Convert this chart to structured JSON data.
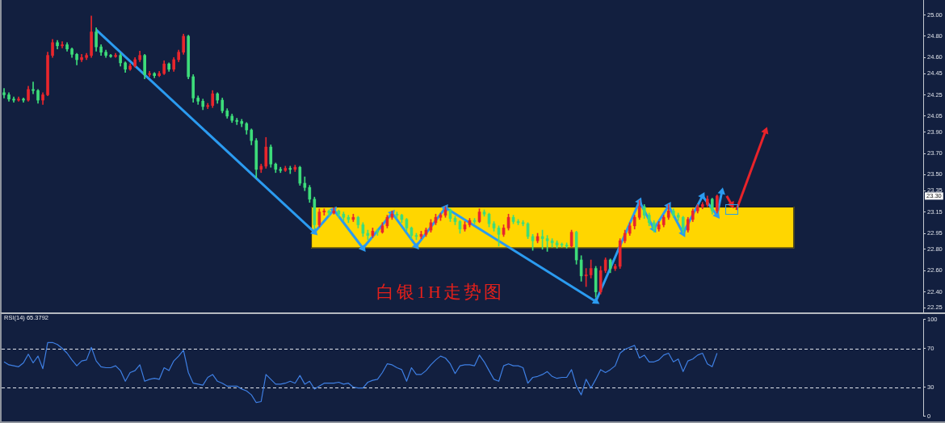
{
  "chart_data": [
    {
      "type": "candlestick",
      "title": "白银1H走势图",
      "categories": [
        null,
        null,
        null,
        null,
        null,
        null,
        null,
        null,
        null,
        null,
        null,
        null,
        null,
        null,
        null,
        null,
        null,
        null,
        null,
        null,
        null,
        null,
        null,
        null,
        null,
        null,
        null,
        null,
        null,
        null,
        null,
        null,
        null,
        null,
        null,
        null,
        null,
        null,
        null,
        null,
        null,
        null,
        null,
        null,
        null,
        null,
        null,
        null,
        null,
        null,
        null,
        null,
        null,
        null,
        null,
        null,
        null,
        null,
        null,
        null,
        null,
        null,
        null,
        null,
        null,
        null,
        null,
        null,
        null,
        null,
        null,
        null,
        null,
        null,
        null,
        null,
        null,
        null,
        null,
        null,
        null,
        null,
        null,
        null,
        null,
        null,
        null,
        null,
        null,
        null,
        null,
        null,
        null,
        null,
        null,
        null,
        null,
        null,
        null,
        null,
        null,
        null,
        null,
        null,
        null,
        null,
        null,
        null,
        null,
        null,
        null,
        null,
        null,
        null,
        null,
        null,
        null,
        null,
        null,
        null,
        null,
        null,
        null,
        null,
        null,
        null,
        null,
        null,
        null,
        null,
        null,
        null,
        null,
        null,
        null,
        null,
        null,
        null,
        null,
        null,
        null,
        null,
        null,
        null,
        null,
        null,
        null,
        null,
        null,
        null,
        null,
        null,
        null,
        null,
        null,
        null,
        null,
        null,
        null,
        null,
        null,
        null,
        null,
        null,
        null,
        null,
        null,
        null,
        null,
        null,
        null,
        null,
        null,
        null,
        null,
        null,
        null,
        null,
        null,
        null,
        null,
        null,
        null,
        null,
        null,
        null,
        null,
        null,
        null,
        null
      ],
      "ohlc": [
        [
          24.27,
          24.31,
          24.22,
          24.25
        ],
        [
          24.25,
          24.27,
          24.19,
          24.21
        ],
        [
          24.21,
          24.23,
          24.18,
          24.2
        ],
        [
          24.2,
          24.23,
          24.19,
          24.21
        ],
        [
          24.21,
          24.22,
          24.18,
          24.2
        ],
        [
          24.2,
          24.33,
          24.19,
          24.3
        ],
        [
          24.3,
          24.37,
          24.26,
          24.29
        ],
        [
          24.29,
          24.3,
          24.17,
          24.2
        ],
        [
          24.2,
          24.27,
          24.16,
          24.25
        ],
        [
          24.25,
          24.65,
          24.24,
          24.62
        ],
        [
          24.62,
          24.77,
          24.6,
          24.74
        ],
        [
          24.74,
          24.76,
          24.68,
          24.71
        ],
        [
          24.71,
          24.75,
          24.69,
          24.72
        ],
        [
          24.72,
          24.74,
          24.66,
          24.68
        ],
        [
          24.68,
          24.69,
          24.6,
          24.63
        ],
        [
          24.63,
          24.64,
          24.53,
          24.58
        ],
        [
          24.58,
          24.63,
          24.56,
          24.6
        ],
        [
          24.6,
          24.64,
          24.58,
          24.62
        ],
        [
          24.62,
          24.99,
          24.6,
          24.84
        ],
        [
          24.84,
          24.88,
          24.66,
          24.7
        ],
        [
          24.7,
          24.72,
          24.62,
          24.65
        ],
        [
          24.65,
          24.67,
          24.6,
          24.62
        ],
        [
          24.62,
          24.63,
          24.6,
          24.61
        ],
        [
          24.61,
          24.64,
          24.6,
          24.62
        ],
        [
          24.62,
          24.64,
          24.52,
          24.55
        ],
        [
          24.55,
          24.56,
          24.46,
          24.49
        ],
        [
          24.49,
          24.54,
          24.48,
          24.52
        ],
        [
          24.52,
          24.6,
          24.51,
          24.58
        ],
        [
          24.58,
          24.66,
          24.56,
          24.62
        ],
        [
          24.62,
          24.63,
          24.4,
          24.44
        ],
        [
          24.44,
          24.47,
          24.42,
          24.45
        ],
        [
          24.45,
          24.46,
          24.41,
          24.43
        ],
        [
          24.43,
          24.47,
          24.42,
          24.45
        ],
        [
          24.45,
          24.57,
          24.44,
          24.54
        ],
        [
          24.54,
          24.55,
          24.47,
          24.49
        ],
        [
          24.49,
          24.6,
          24.47,
          24.58
        ],
        [
          24.58,
          24.67,
          24.56,
          24.65
        ],
        [
          24.65,
          24.82,
          24.63,
          24.8
        ],
        [
          24.8,
          24.81,
          24.4,
          24.42
        ],
        [
          24.42,
          24.44,
          24.18,
          24.22
        ],
        [
          24.22,
          24.24,
          24.16,
          24.19
        ],
        [
          24.19,
          24.21,
          24.11,
          24.14
        ],
        [
          24.14,
          24.17,
          24.12,
          24.15
        ],
        [
          24.15,
          24.29,
          24.13,
          24.26
        ],
        [
          24.26,
          24.27,
          24.17,
          24.2
        ],
        [
          24.2,
          24.22,
          24.08,
          24.1
        ],
        [
          24.1,
          24.12,
          24.03,
          24.05
        ],
        [
          24.05,
          24.07,
          23.99,
          24.01
        ],
        [
          24.01,
          24.03,
          23.97,
          24
        ],
        [
          24,
          24.02,
          23.95,
          23.98
        ],
        [
          23.98,
          23.99,
          23.88,
          23.92
        ],
        [
          23.92,
          23.93,
          23.78,
          23.82
        ],
        [
          23.82,
          23.84,
          23.47,
          23.55
        ],
        [
          23.55,
          23.6,
          23.52,
          23.58
        ],
        [
          23.58,
          23.85,
          23.56,
          23.76
        ],
        [
          23.76,
          23.78,
          23.57,
          23.6
        ],
        [
          23.6,
          23.61,
          23.52,
          23.55
        ],
        [
          23.55,
          23.57,
          23.52,
          23.54
        ],
        [
          23.54,
          23.58,
          23.53,
          23.56
        ],
        [
          23.56,
          23.58,
          23.51,
          23.55
        ],
        [
          23.55,
          23.59,
          23.53,
          23.57
        ],
        [
          23.57,
          23.58,
          23.4,
          23.42
        ],
        [
          23.42,
          23.48,
          23.35,
          23.38
        ],
        [
          23.38,
          23.4,
          23.24,
          23.27
        ],
        [
          23.27,
          23.29,
          22.99,
          23.03
        ],
        [
          23.03,
          23.18,
          23.01,
          23.15
        ],
        [
          23.15,
          23.18,
          23.12,
          23.16
        ],
        [
          23.16,
          23.17,
          23.11,
          23.14
        ],
        [
          23.14,
          23.19,
          23.13,
          23.16
        ],
        [
          23.16,
          23.17,
          23.1,
          23.13
        ],
        [
          23.13,
          23.15,
          23.07,
          23.1
        ],
        [
          23.1,
          23.12,
          23.05,
          23.08
        ],
        [
          23.08,
          23.13,
          23.06,
          23.1
        ],
        [
          23.1,
          23.11,
          23,
          23.03
        ],
        [
          23.03,
          23.05,
          22.92,
          22.95
        ],
        [
          22.95,
          22.98,
          22.89,
          22.93
        ],
        [
          22.93,
          23,
          22.91,
          22.97
        ],
        [
          22.97,
          22.99,
          22.93,
          22.96
        ],
        [
          22.96,
          23.05,
          22.95,
          23.02
        ],
        [
          23.02,
          23.12,
          23,
          23.1
        ],
        [
          23.1,
          23.16,
          23.08,
          23.13
        ],
        [
          23.13,
          23.15,
          23.09,
          23.12
        ],
        [
          23.12,
          23.13,
          23.05,
          23.08
        ],
        [
          23.08,
          23.09,
          22.97,
          23
        ],
        [
          23,
          23.01,
          22.9,
          22.93
        ],
        [
          22.93,
          22.95,
          22.89,
          22.92
        ],
        [
          22.92,
          22.97,
          22.9,
          22.94
        ],
        [
          22.94,
          23,
          22.92,
          22.98
        ],
        [
          22.98,
          23.08,
          22.96,
          23.05
        ],
        [
          23.05,
          23.13,
          23.03,
          23.1
        ],
        [
          23.1,
          23.14,
          23.07,
          23.12
        ],
        [
          23.12,
          23.2,
          23.1,
          23.17
        ],
        [
          23.17,
          23.18,
          23.06,
          23.09
        ],
        [
          23.09,
          23.11,
          23.03,
          23.06
        ],
        [
          23.06,
          23.07,
          22.95,
          22.99
        ],
        [
          22.99,
          23.06,
          22.97,
          23.03
        ],
        [
          23.03,
          23.09,
          23.01,
          23.07
        ],
        [
          23.07,
          23.09,
          23.04,
          23.06
        ],
        [
          23.06,
          23.18,
          23.05,
          23.15
        ],
        [
          23.15,
          23.17,
          23.11,
          23.13
        ],
        [
          23.13,
          23.14,
          23.01,
          23.04
        ],
        [
          23.04,
          23.06,
          22.97,
          23
        ],
        [
          23,
          23.02,
          22.83,
          22.94
        ],
        [
          22.94,
          23.03,
          22.92,
          23
        ],
        [
          23,
          23.13,
          22.98,
          23.1
        ],
        [
          23.1,
          23.12,
          23.04,
          23.06
        ],
        [
          23.06,
          23.08,
          23.03,
          23.05
        ],
        [
          23.05,
          23.07,
          23.02,
          23.04
        ],
        [
          23.04,
          23.05,
          22.9,
          22.92
        ],
        [
          22.92,
          22.94,
          22.79,
          22.88
        ],
        [
          22.88,
          22.95,
          22.86,
          22.92
        ],
        [
          22.92,
          22.98,
          22.8,
          22.9
        ],
        [
          22.9,
          22.93,
          22.78,
          22.88
        ],
        [
          22.88,
          22.9,
          22.82,
          22.86
        ],
        [
          22.86,
          22.88,
          22.81,
          22.84
        ],
        [
          22.84,
          22.86,
          22.82,
          22.84
        ],
        [
          22.84,
          22.86,
          22.81,
          22.83
        ],
        [
          22.83,
          22.98,
          22.82,
          22.96
        ],
        [
          22.96,
          22.97,
          22.66,
          22.7
        ],
        [
          22.7,
          22.74,
          22.5,
          22.55
        ],
        [
          22.55,
          22.62,
          22.45,
          22.56
        ],
        [
          22.56,
          22.7,
          22.53,
          22.62
        ],
        [
          22.62,
          22.64,
          22.35,
          22.4
        ],
        [
          22.4,
          22.64,
          22.38,
          22.6
        ],
        [
          22.6,
          22.72,
          22.58,
          22.7
        ],
        [
          22.7,
          22.71,
          22.58,
          22.62
        ],
        [
          22.62,
          22.66,
          22.6,
          22.64
        ],
        [
          22.64,
          22.9,
          22.62,
          22.88
        ],
        [
          22.88,
          22.98,
          22.86,
          22.95
        ],
        [
          22.95,
          23.05,
          22.93,
          23.02
        ],
        [
          23.02,
          23.12,
          22.99,
          23.1
        ],
        [
          23.1,
          23.26,
          23.08,
          23.2
        ],
        [
          23.2,
          23.22,
          23.09,
          23.12
        ],
        [
          23.12,
          23.14,
          23.02,
          23.05
        ],
        [
          23.05,
          23.07,
          22.96,
          22.99
        ],
        [
          22.99,
          23.06,
          22.97,
          23.03
        ],
        [
          23.03,
          23.12,
          23.01,
          23.1
        ],
        [
          23.1,
          23.22,
          23.08,
          23.16
        ],
        [
          23.16,
          23.18,
          23.1,
          23.12
        ],
        [
          23.12,
          23.14,
          23.07,
          23.1
        ],
        [
          23.1,
          23.11,
          22.95,
          22.98
        ],
        [
          22.98,
          23.1,
          22.96,
          23.08
        ],
        [
          23.08,
          23.18,
          23.06,
          23.16
        ],
        [
          23.16,
          23.22,
          23.14,
          23.2
        ],
        [
          23.2,
          23.24,
          23.18,
          23.22
        ],
        [
          23.22,
          23.3,
          23.2,
          23.27
        ],
        [
          23.27,
          23.28,
          23.13,
          23.16
        ],
        [
          23.16,
          23.31,
          23.14,
          23.3
        ],
        null,
        null,
        null,
        null,
        null,
        null,
        null,
        null,
        null,
        null,
        null,
        null,
        null,
        null,
        null,
        null,
        null,
        null,
        null,
        null,
        null,
        null,
        null,
        null,
        null,
        null,
        null,
        null,
        null,
        null,
        null,
        null,
        null,
        null,
        null,
        null,
        null,
        null,
        null,
        null,
        null,
        null
      ],
      "colors": [
        "#3ddc7a",
        "#3ddc7a",
        "#3ddc7a",
        "#e8262c",
        "#3ddc7a",
        "#e8262c",
        "#3ddc7a",
        "#3ddc7a",
        "#e8262c",
        "#e8262c",
        "#e8262c",
        "#3ddc7a",
        "#e8262c",
        "#3ddc7a",
        "#3ddc7a",
        "#3ddc7a",
        "#e8262c",
        "#e8262c",
        "#e8262c",
        "#3ddc7a",
        "#3ddc7a",
        "#3ddc7a",
        "#3ddc7a",
        "#e8262c",
        "#3ddc7a",
        "#3ddc7a",
        "#e8262c",
        "#e8262c",
        "#e8262c",
        "#3ddc7a",
        "#e8262c",
        "#3ddc7a",
        "#e8262c",
        "#e8262c",
        "#3ddc7a",
        "#e8262c",
        "#e8262c",
        "#e8262c",
        "#3ddc7a",
        "#3ddc7a",
        "#3ddc7a",
        "#3ddc7a",
        "#e8262c",
        "#e8262c",
        "#3ddc7a",
        "#3ddc7a",
        "#3ddc7a",
        "#3ddc7a",
        "#3ddc7a",
        "#3ddc7a",
        "#3ddc7a",
        "#3ddc7a",
        "#3ddc7a",
        "#e8262c",
        "#e8262c",
        "#3ddc7a",
        "#3ddc7a",
        "#3ddc7a",
        "#e8262c",
        "#3ddc7a",
        "#e8262c",
        "#3ddc7a",
        "#3ddc7a",
        "#3ddc7a",
        "#3ddc7a",
        "#e8262c",
        "#e8262c",
        "#3ddc7a",
        "#e8262c",
        "#3ddc7a",
        "#3ddc7a",
        "#3ddc7a",
        "#e8262c",
        "#3ddc7a",
        "#3ddc7a",
        "#3ddc7a",
        "#e8262c",
        "#3ddc7a",
        "#e8262c",
        "#e8262c",
        "#e8262c",
        "#3ddc7a",
        "#3ddc7a",
        "#3ddc7a",
        "#3ddc7a",
        "#3ddc7a",
        "#e8262c",
        "#e8262c",
        "#e8262c",
        "#e8262c",
        "#e8262c",
        "#e8262c",
        "#3ddc7a",
        "#3ddc7a",
        "#3ddc7a",
        "#e8262c",
        "#e8262c",
        "#3ddc7a",
        "#e8262c",
        "#3ddc7a",
        "#3ddc7a",
        "#3ddc7a",
        "#3ddc7a",
        "#e8262c",
        "#e8262c",
        "#3ddc7a",
        "#3ddc7a",
        "#3ddc7a",
        "#3ddc7a",
        "#3ddc7a",
        "#e8262c",
        "#3ddc7a",
        "#3ddc7a",
        "#3ddc7a",
        "#3ddc7a",
        "#3ddc7a",
        "#3ddc7a",
        "#e8262c",
        "#3ddc7a",
        "#3ddc7a",
        "#e8262c",
        "#e8262c",
        "#3ddc7a",
        "#e8262c",
        "#e8262c",
        "#3ddc7a",
        "#e8262c",
        "#e8262c",
        "#e8262c",
        "#e8262c",
        "#e8262c",
        "#e8262c",
        "#3ddc7a",
        "#3ddc7a",
        "#3ddc7a",
        "#e8262c",
        "#e8262c",
        "#e8262c",
        "#3ddc7a",
        "#3ddc7a",
        "#3ddc7a",
        "#e8262c",
        "#e8262c",
        "#e8262c",
        "#e8262c",
        "#e8262c",
        "#3ddc7a",
        "#e8262c",
        null,
        null,
        null,
        null,
        null,
        null,
        null,
        null,
        null,
        null,
        null,
        null,
        null,
        null,
        null,
        null,
        null,
        null,
        null,
        null,
        null,
        null,
        null,
        null,
        null,
        null,
        null,
        null,
        null,
        null,
        null,
        null,
        null,
        null,
        null,
        null,
        null,
        null,
        null,
        null,
        null,
        null
      ],
      "series": [
        {
          "type": "line",
          "color": "#2b9bf0",
          "marker": "triangle",
          "values": [
            null,
            null,
            null,
            null,
            null,
            null,
            null,
            null,
            null,
            null,
            null,
            null,
            null,
            null,
            null,
            null,
            null,
            null,
            null,
            24.86,
            null,
            null,
            null,
            null,
            null,
            null,
            null,
            null,
            null,
            null,
            null,
            null,
            null,
            null,
            null,
            null,
            null,
            null,
            null,
            null,
            null,
            null,
            null,
            null,
            null,
            null,
            null,
            null,
            null,
            null,
            null,
            null,
            null,
            null,
            null,
            null,
            null,
            null,
            null,
            null,
            null,
            null,
            null,
            null,
            22.96,
            null,
            null,
            null,
            23.17,
            null,
            null,
            null,
            null,
            null,
            22.81,
            null,
            null,
            null,
            null,
            null,
            23.14,
            null,
            null,
            null,
            null,
            22.83,
            null,
            null,
            null,
            null,
            null,
            23.19,
            null,
            null,
            null,
            null,
            null,
            null,
            null,
            null,
            null,
            null,
            null,
            null,
            null,
            null,
            null,
            null,
            null,
            null,
            null,
            null,
            null,
            null,
            null,
            null,
            null,
            null,
            null,
            null,
            null,
            null,
            22.31,
            null,
            null,
            null,
            null,
            null,
            null,
            null,
            null,
            23.25,
            null,
            null,
            22.99,
            null,
            null,
            23.21,
            null,
            null,
            22.95,
            null,
            null,
            null,
            23.3,
            null,
            null,
            23.12,
            23.34,
            null,
            null,
            null,
            null,
            null,
            null,
            null,
            null,
            null,
            null,
            null,
            null,
            null,
            null,
            null,
            null,
            null,
            null,
            null,
            null,
            null,
            null,
            null,
            null,
            null,
            null,
            null,
            null,
            null,
            null,
            null,
            null,
            null,
            null,
            null,
            null,
            null,
            null,
            null,
            null,
            null
          ]
        },
        {
          "type": "line",
          "color": "#e8232a",
          "marker": "triangle",
          "values": [
            null,
            null,
            null,
            null,
            null,
            null,
            null,
            null,
            null,
            null,
            null,
            null,
            null,
            null,
            null,
            null,
            null,
            null,
            null,
            null,
            null,
            null,
            null,
            null,
            null,
            null,
            null,
            null,
            null,
            null,
            null,
            null,
            null,
            null,
            null,
            null,
            null,
            null,
            null,
            null,
            null,
            null,
            null,
            null,
            null,
            null,
            null,
            null,
            null,
            null,
            null,
            null,
            null,
            null,
            null,
            null,
            null,
            null,
            null,
            null,
            null,
            null,
            null,
            null,
            null,
            null,
            null,
            null,
            null,
            null,
            null,
            null,
            null,
            null,
            null,
            null,
            null,
            null,
            null,
            null,
            null,
            null,
            null,
            null,
            null,
            null,
            null,
            null,
            null,
            null,
            null,
            null,
            null,
            null,
            null,
            null,
            null,
            null,
            null,
            null,
            null,
            null,
            null,
            null,
            null,
            null,
            null,
            null,
            null,
            null,
            null,
            null,
            null,
            null,
            null,
            null,
            null,
            null,
            null,
            null,
            null,
            null,
            null,
            null,
            null,
            null,
            null,
            null,
            null,
            null,
            null,
            null,
            null,
            null,
            null,
            null,
            null,
            null,
            null,
            null,
            null,
            null,
            null,
            null,
            null,
            null,
            null,
            null,
            null,
            23.3,
            23.22,
            null,
            null,
            null,
            null,
            null,
            null,
            null,
            null,
            null,
            null,
            null,
            null,
            null,
            null,
            null,
            null,
            null,
            null,
            null,
            null,
            null,
            null,
            null,
            null,
            null,
            null,
            null,
            null,
            null,
            null,
            null,
            null,
            null,
            null,
            null,
            null,
            null,
            null,
            null
          ]
        },
        {
          "type": "line",
          "color": "#e8232a",
          "marker": "triangle",
          "values": [
            null,
            null,
            null,
            null,
            null,
            null,
            null,
            null,
            null,
            null,
            null,
            null,
            null,
            null,
            null,
            null,
            null,
            null,
            null,
            null,
            null,
            null,
            null,
            null,
            null,
            null,
            null,
            null,
            null,
            null,
            null,
            null,
            null,
            null,
            null,
            null,
            null,
            null,
            null,
            null,
            null,
            null,
            null,
            null,
            null,
            null,
            null,
            null,
            null,
            null,
            null,
            null,
            null,
            null,
            null,
            null,
            null,
            null,
            null,
            null,
            null,
            null,
            null,
            null,
            null,
            null,
            null,
            null,
            null,
            null,
            null,
            null,
            null,
            null,
            null,
            null,
            null,
            null,
            null,
            null,
            null,
            null,
            null,
            null,
            null,
            null,
            null,
            null,
            null,
            null,
            null,
            null,
            null,
            null,
            null,
            null,
            null,
            null,
            null,
            null,
            null,
            null,
            null,
            null,
            null,
            null,
            null,
            null,
            null,
            null,
            null,
            null,
            null,
            null,
            null,
            null,
            null,
            null,
            null,
            null,
            null,
            null,
            null,
            null,
            null,
            null,
            null,
            null,
            null,
            null,
            null,
            null,
            null,
            null,
            null,
            null,
            null,
            null,
            null,
            null,
            null,
            null,
            null,
            null,
            null,
            null,
            null,
            null,
            null,
            null,
            null,
            23.17,
            null,
            null,
            null,
            null,
            null,
            23.91,
            null,
            null,
            null,
            null,
            null,
            null,
            null,
            null,
            null,
            null,
            null,
            null,
            null,
            null,
            null,
            null,
            null,
            null,
            null,
            null,
            null,
            null,
            null,
            null,
            null,
            null,
            null,
            null,
            null,
            null,
            null,
            null
          ]
        }
      ],
      "ylim": [
        22.2,
        25.14
      ],
      "yticks": [
        22.25,
        {
          "value": 22.4,
          "label": "22.40"
        },
        {
          "value": 22.6,
          "label": "22.60"
        },
        {
          "value": 22.8,
          "label": "22.80"
        },
        22.95,
        23.15,
        23.35,
        {
          "value": 23.5,
          "label": "23.50"
        },
        {
          "value": 23.7,
          "label": "23.70"
        },
        {
          "value": 23.9,
          "label": "23.90"
        },
        24.05,
        24.25,
        24.45,
        {
          "value": 24.6,
          "label": "24.60"
        },
        {
          "value": 24.8,
          "label": "24.80"
        },
        {
          "value": 25,
          "label": "25.00"
        }
      ],
      "tick_labels": "y",
      "bands": [
        {
          "axis": "y",
          "from": 22.81,
          "to": 23.2,
          "color": "#ffd600"
        }
      ],
      "annotations": [
        {
          "text": "23.30",
          "y": 23.3
        }
      ]
    },
    {
      "type": "line",
      "title": "RSI(14) 65.3792",
      "categories": [
        null,
        null,
        null,
        null,
        null,
        null,
        null,
        null,
        null,
        null,
        null,
        null,
        null,
        null,
        null,
        null,
        null,
        null,
        null,
        null,
        null,
        null,
        null,
        null,
        null,
        null,
        null,
        null,
        null,
        null,
        null,
        null,
        null,
        null,
        null,
        null,
        null,
        null,
        null,
        null,
        null,
        null,
        null,
        null,
        null,
        null,
        null,
        null,
        null,
        null,
        null,
        null,
        null,
        null,
        null,
        null,
        null,
        null,
        null,
        null,
        null,
        null,
        null,
        null,
        null,
        null,
        null,
        null,
        null,
        null,
        null,
        null,
        null,
        null,
        null,
        null,
        null,
        null,
        null,
        null,
        null,
        null,
        null,
        null,
        null,
        null,
        null,
        null,
        null,
        null,
        null,
        null,
        null,
        null,
        null,
        null,
        null,
        null,
        null,
        null,
        null,
        null,
        null,
        null,
        null,
        null,
        null,
        null,
        null,
        null,
        null,
        null,
        null,
        null,
        null,
        null,
        null,
        null,
        null,
        null,
        null,
        null,
        null,
        null,
        null,
        null,
        null,
        null,
        null,
        null,
        null,
        null,
        null,
        null,
        null,
        null,
        null,
        null,
        null,
        null,
        null,
        null,
        null,
        null,
        null,
        null,
        null,
        null,
        null,
        null,
        null,
        null,
        null,
        null,
        null,
        null,
        null,
        null,
        null,
        null,
        null,
        null,
        null,
        null,
        null,
        null,
        null,
        null,
        null,
        null,
        null,
        null,
        null,
        null,
        null,
        null,
        null,
        null,
        null,
        null,
        null,
        null,
        null,
        null,
        null,
        null,
        null,
        null,
        null,
        null
      ],
      "series": [
        {
          "color": "#3e7fe3",
          "values": [
            56,
            53,
            52,
            51,
            55,
            64,
            55,
            62,
            49,
            76,
            76,
            74,
            70,
            65,
            58,
            52,
            57,
            58,
            71,
            57,
            51,
            50,
            50,
            52,
            47,
            36,
            45,
            47,
            53,
            36,
            38,
            39,
            38,
            50,
            47,
            57,
            62,
            68,
            45,
            34,
            33,
            32,
            40,
            43,
            36,
            34,
            31,
            31,
            31,
            28,
            26,
            22,
            14,
            15,
            43,
            38,
            33,
            33,
            34,
            36,
            34,
            42,
            33,
            36,
            28,
            31,
            34,
            34,
            34,
            35,
            33,
            34,
            30,
            29,
            29,
            35,
            37,
            38,
            45,
            54,
            53,
            50,
            48,
            36,
            50,
            43,
            43,
            47,
            53,
            58,
            62,
            60,
            54,
            44,
            52,
            53,
            53,
            52,
            63,
            56,
            47,
            38,
            36,
            52,
            54,
            52,
            52,
            50,
            34,
            40,
            41,
            43,
            46,
            41,
            39,
            40,
            40,
            48,
            31,
            22,
            38,
            29,
            38,
            48,
            45,
            48,
            52,
            65,
            69,
            71,
            73,
            60,
            63,
            56,
            56,
            58,
            63,
            65,
            56,
            59,
            46,
            57,
            59,
            63,
            65,
            54,
            51,
            65,
            null,
            null,
            null,
            null,
            null,
            null,
            null,
            null,
            null,
            null,
            null,
            null,
            null,
            null,
            null,
            null,
            null,
            null,
            null,
            null,
            null,
            null,
            null,
            null,
            null,
            null,
            null,
            null,
            null,
            null,
            null,
            null,
            null,
            null,
            null,
            null,
            null,
            null,
            null,
            null,
            null,
            null
          ]
        }
      ],
      "ylim": [
        0,
        100
      ],
      "yticks": [
        0,
        30,
        70,
        100
      ],
      "tick_labels": "y",
      "ref_lines": [
        {
          "axis": "y",
          "value": 70,
          "color": "#dfe3ea",
          "line_style": "dashed"
        },
        {
          "axis": "y",
          "value": 30,
          "color": "#dfe3ea",
          "line_style": "dashed"
        }
      ]
    }
  ]
}
